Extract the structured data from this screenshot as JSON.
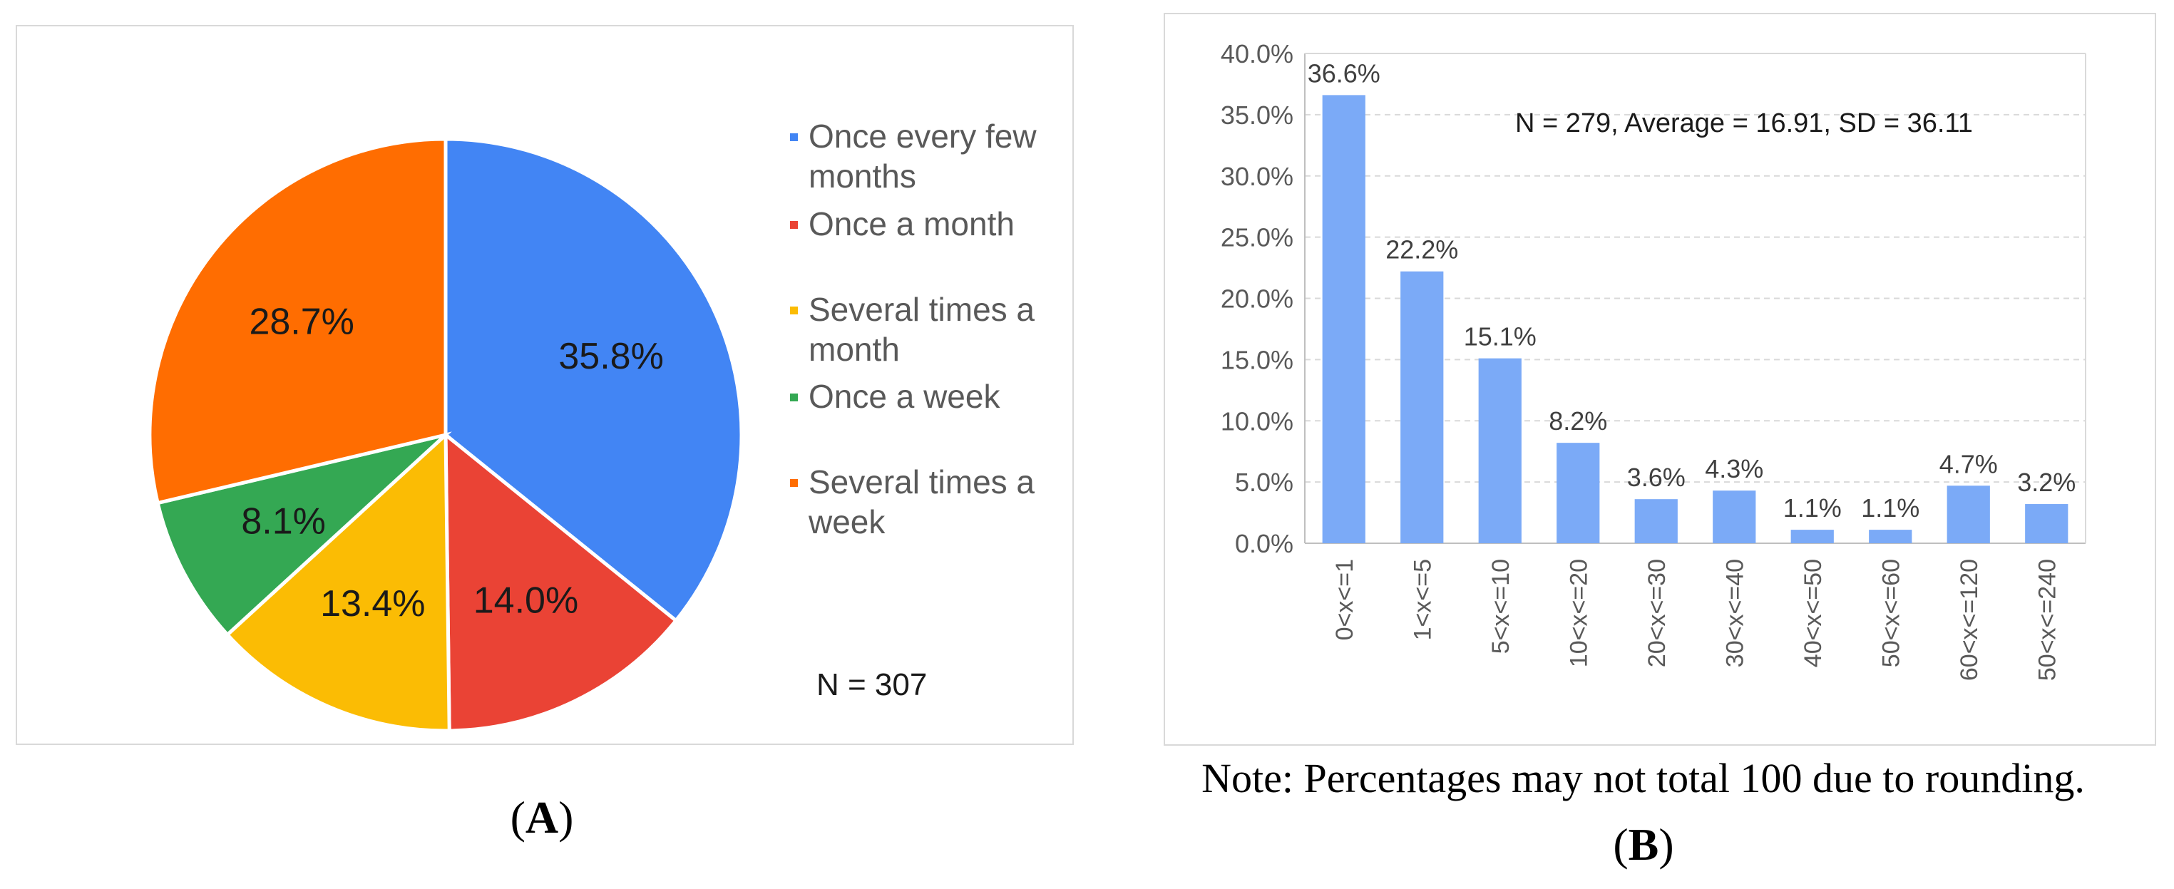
{
  "chart_data": [
    {
      "type": "pie",
      "panel_label": "A",
      "slices": [
        {
          "label": "Once every few months",
          "label_lines": [
            "Once every few",
            "months"
          ],
          "value": 35.8,
          "value_label": "35.8%",
          "color": "#4285f4"
        },
        {
          "label": "Once a month",
          "label_lines": [
            "Once a month"
          ],
          "value": 14.0,
          "value_label": "14.0%",
          "color": "#ea4335"
        },
        {
          "label": "Several times a month",
          "label_lines": [
            "Several times a",
            "month"
          ],
          "value": 13.4,
          "value_label": "13.4%",
          "color": "#fbbc04"
        },
        {
          "label": "Once a week",
          "label_lines": [
            "Once a week"
          ],
          "value": 8.1,
          "value_label": "8.1%",
          "color": "#34a853"
        },
        {
          "label": "Several times a week",
          "label_lines": [
            "Several times a",
            "week"
          ],
          "value": 28.7,
          "value_label": "28.7%",
          "color": "#ff6d01"
        }
      ],
      "annotation": "N = 307",
      "legend_position": "right"
    },
    {
      "type": "bar",
      "panel_label": "B",
      "categories": [
        "0<x<=1",
        "1<x<=5",
        "5<x<=10",
        "10<x<=20",
        "20<x<=30",
        "30<x<=40",
        "40<x<=50",
        "50<x<=60",
        "60<x<=120",
        "50<x<=240"
      ],
      "values": [
        36.6,
        22.2,
        15.1,
        8.2,
        3.6,
        4.3,
        1.1,
        1.1,
        4.7,
        3.2
      ],
      "value_labels": [
        "36.6%",
        "22.2%",
        "15.1%",
        "8.2%",
        "3.6%",
        "4.3%",
        "1.1%",
        "1.1%",
        "4.7%",
        "3.2%"
      ],
      "ylim": [
        0,
        40
      ],
      "yticks": [
        "0.0%",
        "5.0%",
        "10.0%",
        "15.0%",
        "20.0%",
        "25.0%",
        "30.0%",
        "35.0%",
        "40.0%"
      ],
      "annotation": "N = 279, Average  = 16.91, SD = 36.11",
      "bar_color": "#7baaf7",
      "grid": true
    }
  ],
  "note": "Note: Percentages may not total 100 due to rounding."
}
